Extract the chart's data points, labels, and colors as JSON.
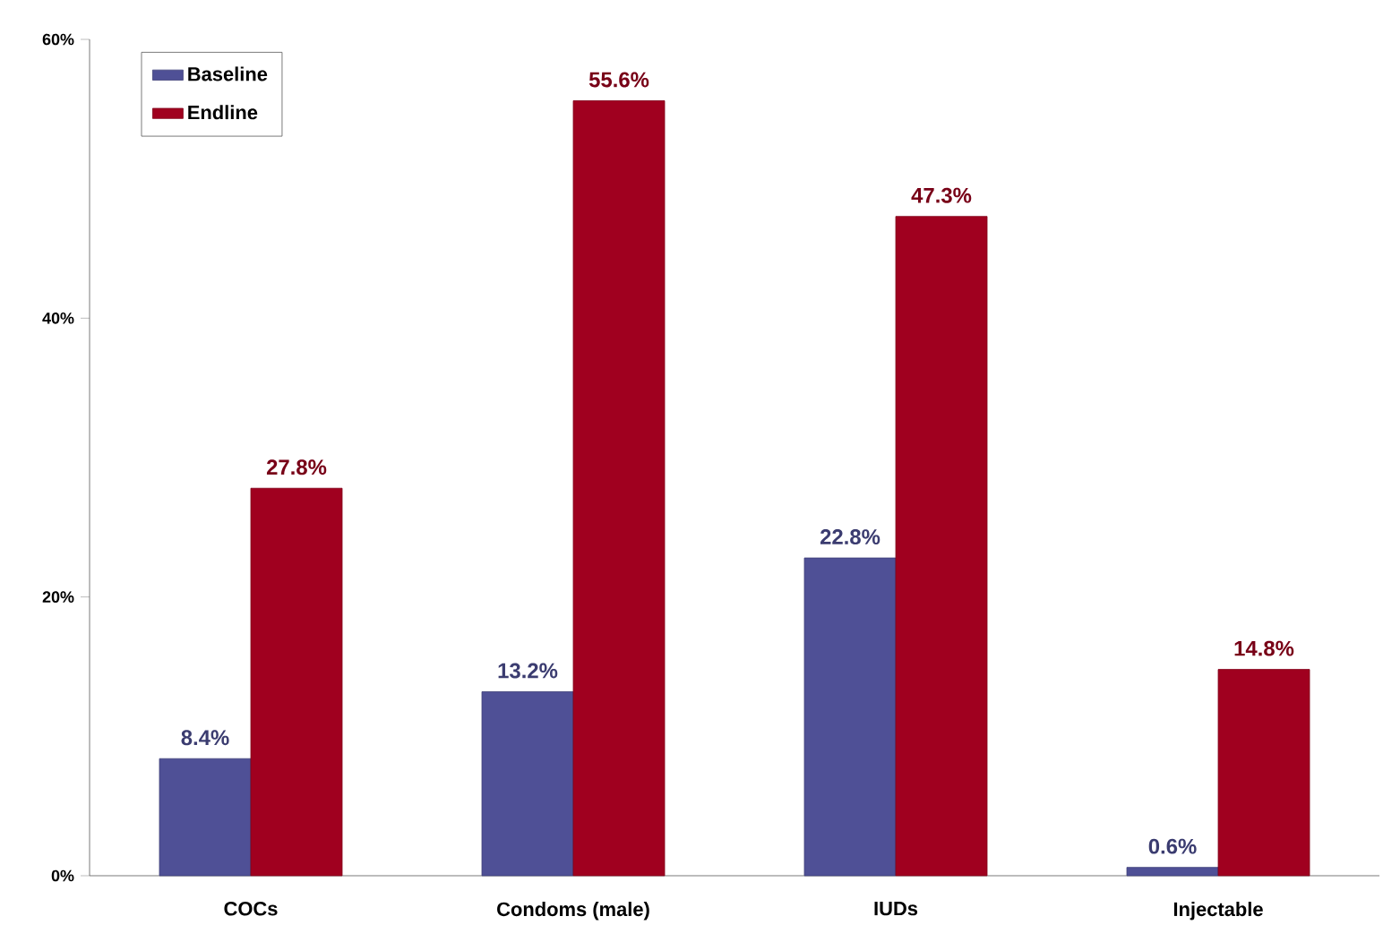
{
  "chart_data": {
    "type": "bar",
    "categories": [
      "COCs",
      "Condoms (male)",
      "IUDs",
      "Injectable"
    ],
    "series": [
      {
        "name": "Baseline",
        "color": "#4f5096",
        "values": [
          8.4,
          13.2,
          22.8,
          0.6
        ],
        "value_labels": [
          "8.4%",
          "13.2%",
          "22.8%",
          "0.6%"
        ]
      },
      {
        "name": "Endline",
        "color": "#a0001f",
        "values": [
          27.8,
          55.6,
          47.3,
          14.8
        ],
        "value_labels": [
          "27.8%",
          "55.6%",
          "47.3%",
          "14.8%"
        ]
      }
    ],
    "ylim": [
      0,
      60
    ],
    "yticks": [
      {
        "value": 0,
        "label": "0%"
      },
      {
        "value": 20,
        "label": "20%"
      },
      {
        "value": 40,
        "label": "40%"
      },
      {
        "value": 60,
        "label": "60%"
      }
    ],
    "legend": "top left"
  }
}
